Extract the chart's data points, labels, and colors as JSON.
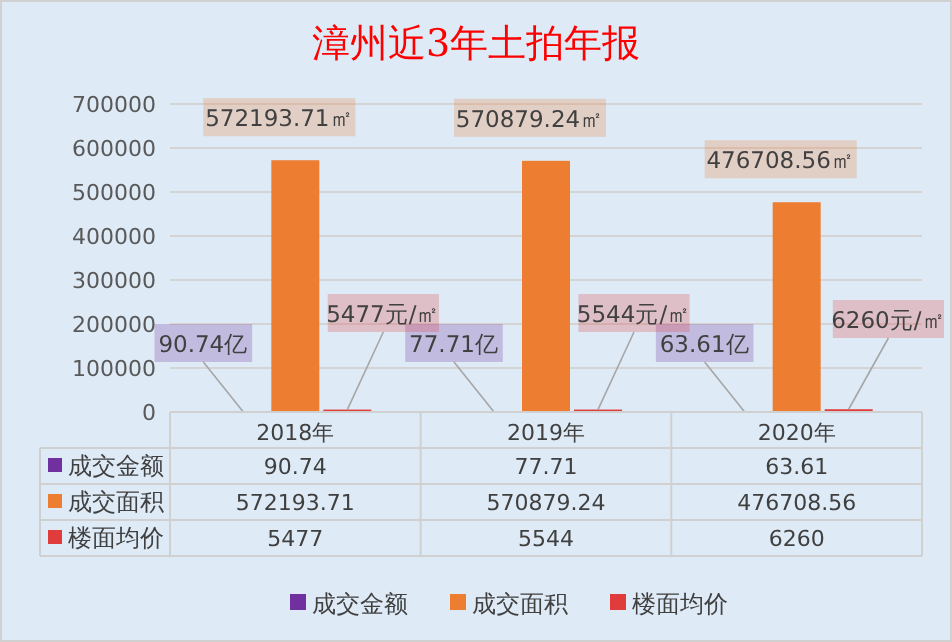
{
  "chart_data": {
    "type": "bar",
    "title": "漳州近3年土拍年报",
    "categories": [
      "2018年",
      "2019年",
      "2020年"
    ],
    "series": [
      {
        "name": "成交金额",
        "color": "#7030a0",
        "values": [
          90.74,
          77.71,
          63.61
        ]
      },
      {
        "name": "成交面积",
        "color": "#ed7d31",
        "values": [
          572193.71,
          570879.24,
          476708.56
        ]
      },
      {
        "name": "楼面均价",
        "color": "#e03c3c",
        "values": [
          5477,
          5544,
          6260
        ]
      }
    ],
    "annotations": [
      "90.74亿",
      "77.71亿",
      "63.61亿",
      "5477元/㎡",
      "5544元/㎡",
      "6260元/㎡",
      {
        "text": "572193.71㎡",
        "x": "2018年",
        "y": 572193.71
      },
      {
        "text": "570879.24㎡",
        "x": "2019年",
        "y": 570879.24
      },
      {
        "text": "476708.56㎡",
        "x": "2020年",
        "y": 476708.56
      }
    ],
    "ylim": [
      0,
      700000
    ],
    "yticks": [
      0,
      100000,
      200000,
      300000,
      400000,
      500000,
      600000,
      700000
    ],
    "grid": "y",
    "legend": "bottom",
    "data_labels": true
  }
}
